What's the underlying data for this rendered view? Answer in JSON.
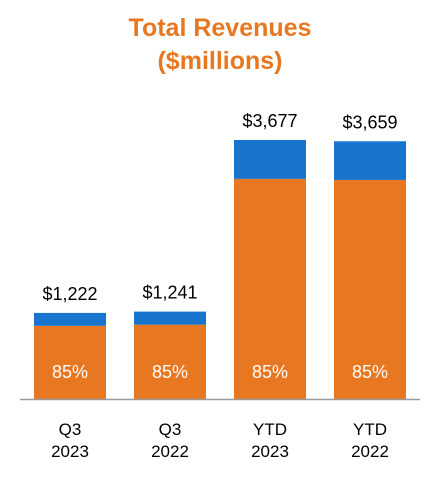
{
  "chart_data": {
    "type": "bar",
    "stacked": true,
    "title": "Total Revenues",
    "subtitle": "($millions)",
    "categories": [
      [
        "Q3",
        "2023"
      ],
      [
        "Q3",
        "2022"
      ],
      [
        "YTD",
        "2023"
      ],
      [
        "YTD",
        "2022"
      ]
    ],
    "totals": [
      1222,
      1241,
      3677,
      3659
    ],
    "total_labels": [
      "$1,222",
      "$1,241",
      "$3,677",
      "$3,659"
    ],
    "segment_labels": [
      "85%",
      "85%",
      "85%",
      "85%"
    ],
    "series": [
      {
        "values": [
          1039,
          1055,
          3125,
          3110
        ],
        "color": "#E87722"
      },
      {
        "values": [
          183,
          186,
          552,
          549
        ],
        "color": "#1874CD"
      }
    ],
    "ylim": [
      0,
      3677
    ],
    "grid": false,
    "legend": "none"
  }
}
